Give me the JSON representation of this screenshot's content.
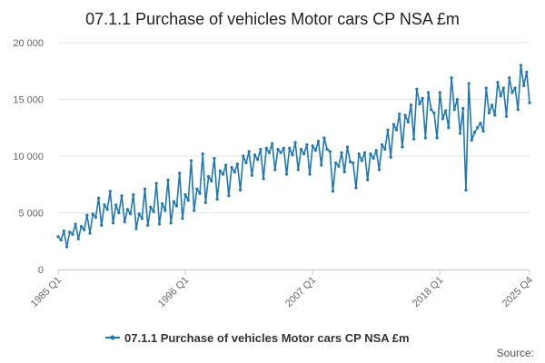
{
  "chart_data": {
    "type": "line",
    "title": "07.1.1 Purchase of vehicles Motor cars CP NSA £m",
    "xlabel": "",
    "ylabel": "",
    "ylim": [
      0,
      20000
    ],
    "yticks": [
      0,
      5000,
      10000,
      15000,
      20000
    ],
    "ytick_labels": [
      "0",
      "5 000",
      "10 000",
      "15 000",
      "20 000"
    ],
    "xtick_labels": [
      "1985 Q1",
      "1996 Q1",
      "2007 Q1",
      "2018 Q1",
      "2025 Q4"
    ],
    "xtick_index": [
      0,
      44,
      88,
      132,
      163
    ],
    "start_label": "1985 Q1",
    "end_label": "2025 Q4",
    "series": [
      {
        "name": "07.1.1 Purchase of vehicles Motor cars CP NSA £m",
        "color": "#1f78b4",
        "values": [
          2900,
          2600,
          3400,
          2000,
          3300,
          3100,
          4000,
          2700,
          3800,
          3500,
          4800,
          3200,
          4900,
          4600,
          6300,
          3900,
          5700,
          5300,
          6900,
          4100,
          5700,
          5000,
          6500,
          4200,
          5300,
          4900,
          6600,
          3600,
          4900,
          4500,
          7100,
          3900,
          5500,
          5100,
          7600,
          4000,
          5800,
          5200,
          7900,
          4100,
          6000,
          5600,
          8500,
          4500,
          6600,
          6100,
          9600,
          5200,
          7100,
          6700,
          10200,
          5900,
          8200,
          7800,
          9800,
          6200,
          8700,
          8400,
          9200,
          6500,
          9000,
          8600,
          9300,
          7000,
          10000,
          9400,
          10400,
          8300,
          10100,
          9700,
          10600,
          8000,
          10700,
          10300,
          11100,
          8800,
          10600,
          10300,
          10700,
          8400,
          10700,
          10100,
          11200,
          8800,
          10600,
          10200,
          11000,
          8400,
          10900,
          10500,
          11300,
          9200,
          11600,
          10600,
          10400,
          6900,
          9400,
          9100,
          10300,
          8600,
          10800,
          9500,
          9400,
          7200,
          10200,
          9600,
          10300,
          7900,
          10200,
          9800,
          10500,
          8800,
          11000,
          10600,
          12300,
          9900,
          12800,
          12300,
          13700,
          10800,
          13600,
          13000,
          14500,
          11500,
          15900,
          14600,
          15100,
          11600,
          15600,
          14100,
          13800,
          11600,
          15600,
          13300,
          14000,
          12500,
          16900,
          14100,
          15000,
          12000,
          14200,
          7000,
          16400,
          11400,
          12100,
          12500,
          12900,
          12200,
          16000,
          13800,
          14500,
          13600,
          16500,
          15300,
          16000,
          13500,
          16900,
          15600,
          16000,
          14100,
          18000,
          16200,
          17400,
          14700
        ]
      }
    ],
    "legend_position": "bottom"
  },
  "source_label": "Source:"
}
